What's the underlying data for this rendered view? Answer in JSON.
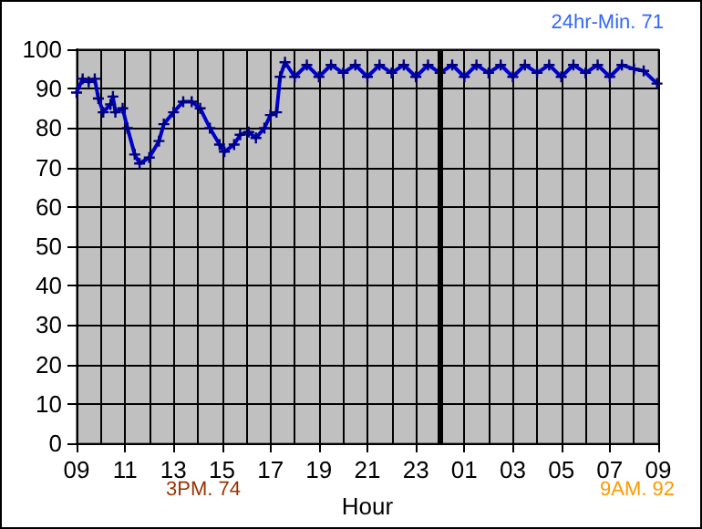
{
  "chart_data": {
    "type": "line",
    "xlabel": "Hour",
    "annotations": [
      "24hr-Min. 71",
      "3PM. 74",
      "9AM. 92"
    ],
    "x": [
      "--01-01T09:00",
      "--01-01T09:15",
      "--01-01T09:30",
      "--01-01T09:45",
      "--01-01T09:54",
      "--01-01T10:06",
      "--01-01T10:24",
      "--01-01T10:30",
      "--01-01T10:36",
      "--01-01T10:54",
      "--01-01T11:06",
      "--01-01T11:24",
      "--01-01T11:36",
      "--01-01T12:00",
      "--01-01T12:24",
      "--01-01T12:36",
      "--01-01T13:00",
      "--01-01T13:24",
      "--01-01T13:45",
      "--01-01T14:06",
      "--01-01T14:30",
      "--01-01T14:54",
      "--01-01T15:06",
      "--01-01T15:30",
      "--01-01T15:45",
      "--01-01T16:06",
      "--01-01T16:24",
      "--01-01T16:45",
      "--01-01T17:00",
      "--01-01T17:15",
      "--01-01T17:24",
      "--01-01T17:36",
      "--01-01T18:00",
      "--01-01T18:30",
      "--01-01T19:00",
      "--01-01T19:30",
      "--01-01T20:00",
      "--01-01T20:30",
      "--01-01T21:00",
      "--01-01T21:30",
      "--01-01T22:00",
      "--01-01T22:30",
      "--01-01T23:00",
      "--01-01T23:30",
      "--01-02T00:00",
      "--01-02T00:30",
      "--01-02T01:00",
      "--01-02T01:30",
      "--01-02T02:00",
      "--01-02T02:30",
      "--01-02T03:00",
      "--01-02T03:30",
      "--01-02T04:00",
      "--01-02T04:30",
      "--01-02T05:00",
      "--01-02T05:30",
      "--01-02T06:00",
      "--01-02T06:30",
      "--01-02T07:00",
      "--01-02T07:30",
      "--01-02T08:00",
      "--01-02T08:24",
      "--01-02T08:57"
    ],
    "series": [
      {
        "color": "#0000cc",
        "values": [
          89,
          92.5,
          91.7,
          92.5,
          87.5,
          84,
          86,
          88,
          84,
          85,
          80,
          73.3,
          71,
          72.5,
          76.7,
          81,
          84,
          86.7,
          86.7,
          85,
          80,
          75.8,
          74,
          75.8,
          78.3,
          79,
          77.5,
          80,
          83.3,
          84,
          93,
          96.7,
          93,
          96,
          93,
          96,
          94,
          96,
          93,
          96,
          94,
          96,
          93,
          96,
          94,
          96,
          93,
          96,
          94,
          96,
          93,
          96,
          94,
          96,
          93,
          96,
          94,
          96,
          93,
          96,
          95,
          94.5,
          91.3
        ]
      }
    ],
    "xlim": [
      "--01-01T09:00",
      "--01-02T09:00"
    ],
    "xticks": [
      {
        "value": "--01-01T09:00",
        "label": "09"
      },
      {
        "value": "--01-01T11:00",
        "label": "11"
      },
      {
        "value": "--01-01T13:00",
        "label": "13"
      },
      {
        "value": "--01-01T15:00",
        "label": "15"
      },
      {
        "value": "--01-01T17:00",
        "label": "17"
      },
      {
        "value": "--01-01T19:00",
        "label": "19"
      },
      {
        "value": "--01-01T21:00",
        "label": "21"
      },
      {
        "value": "--01-01T23:00",
        "label": "23"
      },
      {
        "value": "--01-02T01:00",
        "label": "01"
      },
      {
        "value": "--01-02T03:00",
        "label": "03"
      },
      {
        "value": "--01-02T05:00",
        "label": "05"
      },
      {
        "value": "--01-02T07:00",
        "label": "07"
      },
      {
        "value": "--01-02T09:00",
        "label": "09"
      }
    ],
    "ylim": [
      0,
      100
    ],
    "yticks": [
      0,
      10,
      20,
      30,
      40,
      50,
      60,
      70,
      80,
      90,
      100
    ],
    "ref_lines": [
      {
        "axis": "x",
        "value": "--01-02T00:00",
        "color": "#000000"
      }
    ],
    "grid": true,
    "marker": "cross",
    "line_style": "solid"
  }
}
